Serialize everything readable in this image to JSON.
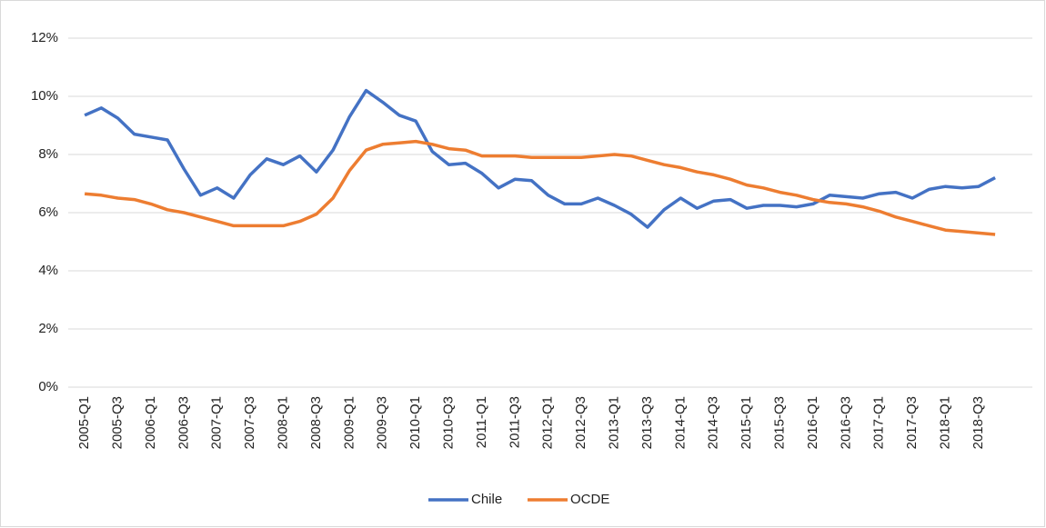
{
  "chart_data": {
    "type": "line",
    "categories": [
      "2005-Q1",
      null,
      "2005-Q3",
      null,
      "2006-Q1",
      null,
      "2006-Q3",
      null,
      "2007-Q1",
      null,
      "2007-Q3",
      null,
      "2008-Q1",
      null,
      "2008-Q3",
      null,
      "2009-Q1",
      null,
      "2009-Q3",
      null,
      "2010-Q1",
      null,
      "2010-Q3",
      null,
      "2011-Q1",
      null,
      "2011-Q3",
      null,
      "2012-Q1",
      null,
      "2012-Q3",
      null,
      "2013-Q1",
      null,
      "2013-Q3",
      null,
      "2014-Q1",
      null,
      "2014-Q3",
      null,
      "2015-Q1",
      null,
      "2015-Q3",
      null,
      "2016-Q1",
      null,
      "2016-Q3",
      null,
      "2017-Q1",
      null,
      "2017-Q3",
      null,
      "2018-Q1",
      null,
      "2018-Q3",
      null
    ],
    "series": [
      {
        "name": "Chile",
        "color": "#4472c4",
        "values": [
          9.35,
          9.6,
          9.25,
          8.7,
          8.6,
          8.5,
          7.5,
          6.6,
          6.85,
          6.5,
          7.3,
          7.85,
          7.65,
          7.95,
          7.4,
          8.15,
          9.3,
          10.2,
          9.8,
          9.35,
          9.15,
          8.1,
          7.65,
          7.7,
          7.35,
          6.85,
          7.15,
          7.1,
          6.6,
          6.3,
          6.3,
          6.5,
          6.25,
          5.95,
          5.5,
          6.1,
          6.5,
          6.15,
          6.4,
          6.45,
          6.15,
          6.25,
          6.25,
          6.2,
          6.3,
          6.6,
          6.55,
          6.5,
          6.65,
          6.7,
          6.5,
          6.8,
          6.9,
          6.85,
          6.9,
          7.2
        ]
      },
      {
        "name": "OCDE",
        "color": "#ed7d31",
        "values": [
          6.65,
          6.6,
          6.5,
          6.45,
          6.3,
          6.1,
          6.0,
          5.85,
          5.7,
          5.55,
          5.55,
          5.55,
          5.55,
          5.7,
          5.95,
          6.5,
          7.45,
          8.15,
          8.35,
          8.4,
          8.45,
          8.35,
          8.2,
          8.15,
          7.95,
          7.95,
          7.95,
          7.9,
          7.9,
          7.9,
          7.9,
          7.95,
          8.0,
          7.95,
          7.8,
          7.65,
          7.55,
          7.4,
          7.3,
          7.15,
          6.95,
          6.85,
          6.7,
          6.6,
          6.45,
          6.35,
          6.3,
          6.2,
          6.05,
          5.85,
          5.7,
          5.55,
          5.4,
          5.35,
          5.3,
          5.25
        ]
      }
    ],
    "ylim": [
      0,
      12
    ],
    "yticks": [
      {
        "value": 0,
        "label": "0%"
      },
      {
        "value": 2,
        "label": "2%"
      },
      {
        "value": 4,
        "label": "4%"
      },
      {
        "value": 6,
        "label": "6%"
      },
      {
        "value": 8,
        "label": "8%"
      },
      {
        "value": 10,
        "label": "10%"
      },
      {
        "value": 12,
        "label": "12%"
      }
    ],
    "grid": true,
    "legend": "bottom"
  }
}
